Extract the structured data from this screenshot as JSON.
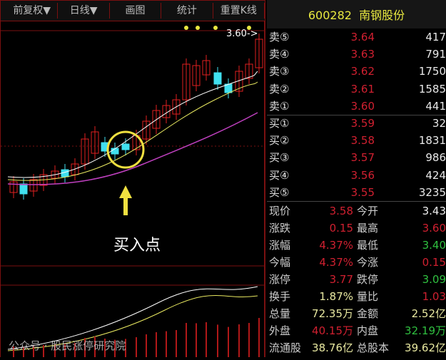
{
  "toolbar": {
    "items": [
      "前复权▼",
      "日线▼",
      "画图",
      "统计",
      "重置K线"
    ]
  },
  "stock": {
    "code": "600282",
    "name": "南钢股份"
  },
  "chart": {
    "price_marker": "3.60->",
    "annotation": "买入点",
    "colors": {
      "up": "#e02020",
      "down": "#40e0f0",
      "ma_white": "#ffffff",
      "ma_yellow": "#e8e860",
      "ma_purple": "#c040c0"
    }
  },
  "orderbook": [
    {
      "label": "卖⑤",
      "price": "3.64",
      "volume": "417"
    },
    {
      "label": "卖④",
      "price": "3.63",
      "volume": "791"
    },
    {
      "label": "卖③",
      "price": "3.62",
      "volume": "1750"
    },
    {
      "label": "卖②",
      "price": "3.61",
      "volume": "1585"
    },
    {
      "label": "卖①",
      "price": "3.60",
      "volume": "441"
    },
    {
      "label": "买①",
      "price": "3.59",
      "volume": "32"
    },
    {
      "label": "买②",
      "price": "3.58",
      "volume": "1831"
    },
    {
      "label": "买③",
      "price": "3.57",
      "volume": "986"
    },
    {
      "label": "买④",
      "price": "3.56",
      "volume": "424"
    },
    {
      "label": "买⑤",
      "price": "3.55",
      "volume": "3235"
    }
  ],
  "stats": [
    {
      "l1": "现价",
      "v1": "3.58",
      "c1": "red",
      "l2": "今开",
      "v2": "3.43",
      "c2": "wht"
    },
    {
      "l1": "涨跌",
      "v1": "0.15",
      "c1": "red",
      "l2": "最高",
      "v2": "3.60",
      "c2": "red"
    },
    {
      "l1": "涨幅",
      "v1": "4.37%",
      "c1": "red",
      "l2": "最低",
      "v2": "3.40",
      "c2": "grn"
    },
    {
      "l1": "今幅",
      "v1": "4.37%",
      "c1": "red",
      "l2": "今涨",
      "v2": "0.15",
      "c2": "red"
    },
    {
      "l1": "涨停",
      "v1": "3.77",
      "c1": "red",
      "l2": "跌停",
      "v2": "3.09",
      "c2": "grn"
    },
    {
      "l1": "换手",
      "v1": "1.87%",
      "c1": "yel",
      "l2": "量比",
      "v2": "1.03",
      "c2": "red"
    },
    {
      "l1": "总量",
      "v1": "72.35万",
      "c1": "yel",
      "l2": "金额",
      "v2": "2.52亿",
      "c2": "yel"
    },
    {
      "l1": "外盘",
      "v1": "40.15万",
      "c1": "red",
      "l2": "内盘",
      "v2": "32.19万",
      "c2": "grn"
    },
    {
      "l1": "流通股",
      "v1": "38.76亿",
      "c1": "yel",
      "l2": "总股本",
      "v2": "39.62亿",
      "c2": "yel"
    }
  ],
  "watermark": "公众号 · 股民涨停研究院"
}
